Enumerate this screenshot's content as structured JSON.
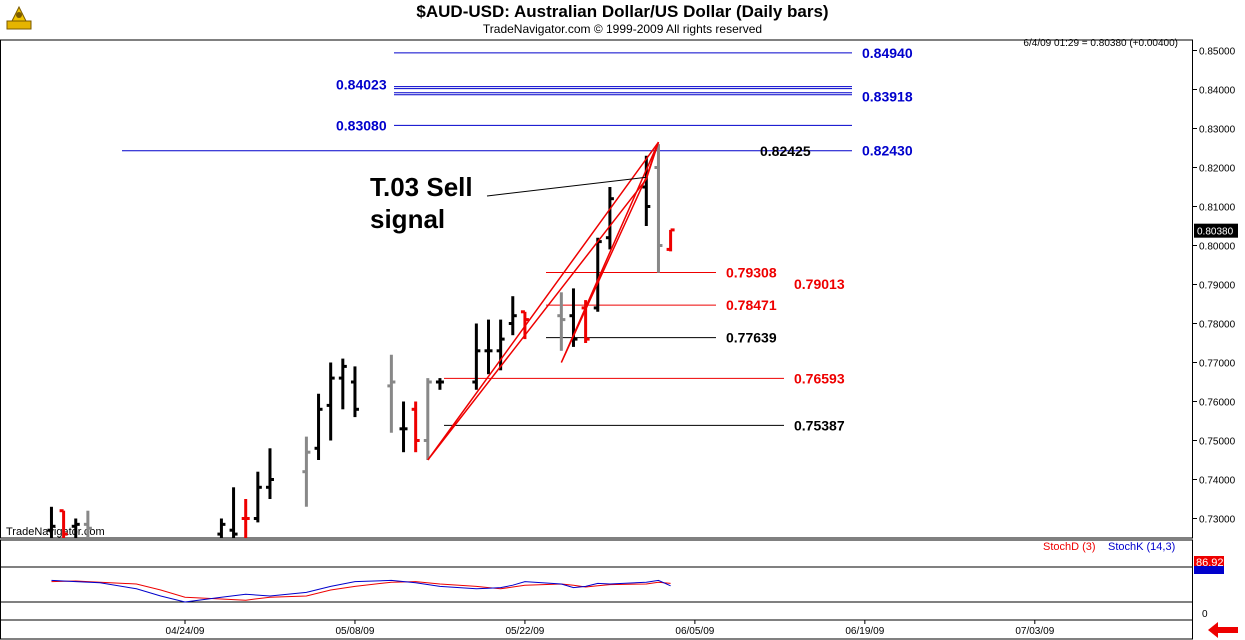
{
  "header": {
    "title": "$AUD-USD:  Australian Dollar/US Dollar  (Daily bars)",
    "subtitle": "TradeNavigator.com © 1999-2009 All rights reserved",
    "status": "6/4/09 01:29 = 0.80380 (+0.00400)",
    "watermark": "TradeNavigator.com",
    "last_price": "0.80380"
  },
  "chart_data": [
    {
      "type": "ohlc",
      "ylim": [
        0.725,
        0.8525
      ],
      "ytick_labels": [
        "0.73000",
        "0.74000",
        "0.75000",
        "0.76000",
        "0.77000",
        "0.78000",
        "0.79000",
        "0.80000",
        "0.81000",
        "0.82000",
        "0.83000",
        "0.84000",
        "0.85000"
      ],
      "xtick_labels": [
        "04/24/09",
        "05/08/09",
        "05/22/09",
        "06/05/09",
        "06/19/09",
        "07/03/09"
      ],
      "colors": {
        "up": "#000000",
        "down": "#ee0000",
        "neutral": "#888888"
      },
      "bars": [
        {
          "date": "04/13/09",
          "o": 0.727,
          "h": 0.733,
          "l": 0.725,
          "c": 0.728,
          "color": "up"
        },
        {
          "date": "04/14/09",
          "o": 0.732,
          "h": 0.732,
          "l": 0.725,
          "c": 0.726,
          "color": "down"
        },
        {
          "date": "04/15/09",
          "o": 0.728,
          "h": 0.73,
          "l": 0.725,
          "c": 0.7285,
          "color": "up"
        },
        {
          "date": "04/16/09",
          "o": 0.7285,
          "h": 0.732,
          "l": 0.725,
          "c": 0.7275,
          "color": "neutral"
        },
        {
          "date": "04/27/09",
          "o": 0.726,
          "h": 0.73,
          "l": 0.725,
          "c": 0.7285,
          "color": "up"
        },
        {
          "date": "04/28/09",
          "o": 0.727,
          "h": 0.738,
          "l": 0.725,
          "c": 0.726,
          "color": "up"
        },
        {
          "date": "04/29/09",
          "o": 0.73,
          "h": 0.735,
          "l": 0.725,
          "c": 0.73,
          "color": "down"
        },
        {
          "date": "04/30/09",
          "o": 0.73,
          "h": 0.742,
          "l": 0.729,
          "c": 0.738,
          "color": "up"
        },
        {
          "date": "05/01/09",
          "o": 0.738,
          "h": 0.748,
          "l": 0.735,
          "c": 0.74,
          "color": "up"
        },
        {
          "date": "05/04/09",
          "o": 0.742,
          "h": 0.751,
          "l": 0.733,
          "c": 0.747,
          "color": "neutral"
        },
        {
          "date": "05/05/09",
          "o": 0.748,
          "h": 0.762,
          "l": 0.745,
          "c": 0.758,
          "color": "up"
        },
        {
          "date": "05/06/09",
          "o": 0.759,
          "h": 0.77,
          "l": 0.75,
          "c": 0.766,
          "color": "up"
        },
        {
          "date": "05/07/09",
          "o": 0.766,
          "h": 0.771,
          "l": 0.758,
          "c": 0.769,
          "color": "up"
        },
        {
          "date": "05/08/09",
          "o": 0.765,
          "h": 0.769,
          "l": 0.756,
          "c": 0.758,
          "color": "up"
        },
        {
          "date": "05/11/09",
          "o": 0.764,
          "h": 0.772,
          "l": 0.752,
          "c": 0.765,
          "color": "neutral"
        },
        {
          "date": "05/12/09",
          "o": 0.753,
          "h": 0.76,
          "l": 0.747,
          "c": 0.753,
          "color": "up"
        },
        {
          "date": "05/13/09",
          "o": 0.758,
          "h": 0.76,
          "l": 0.747,
          "c": 0.75,
          "color": "down"
        },
        {
          "date": "05/14/09",
          "o": 0.75,
          "h": 0.766,
          "l": 0.745,
          "c": 0.765,
          "color": "neutral"
        },
        {
          "date": "05/15/09",
          "o": 0.765,
          "h": 0.766,
          "l": 0.763,
          "c": 0.765,
          "color": "up"
        },
        {
          "date": "05/18/09",
          "o": 0.765,
          "h": 0.78,
          "l": 0.763,
          "c": 0.773,
          "color": "up"
        },
        {
          "date": "05/19/09",
          "o": 0.773,
          "h": 0.781,
          "l": 0.767,
          "c": 0.773,
          "color": "up"
        },
        {
          "date": "05/20/09",
          "o": 0.773,
          "h": 0.781,
          "l": 0.768,
          "c": 0.776,
          "color": "up"
        },
        {
          "date": "05/21/09",
          "o": 0.78,
          "h": 0.787,
          "l": 0.777,
          "c": 0.782,
          "color": "up"
        },
        {
          "date": "05/22/09",
          "o": 0.783,
          "h": 0.783,
          "l": 0.776,
          "c": 0.781,
          "color": "down"
        },
        {
          "date": "05/25/09",
          "o": 0.782,
          "h": 0.788,
          "l": 0.773,
          "c": 0.781,
          "color": "neutral"
        },
        {
          "date": "05/26/09",
          "o": 0.782,
          "h": 0.789,
          "l": 0.774,
          "c": 0.776,
          "color": "up"
        },
        {
          "date": "05/27/09",
          "o": 0.784,
          "h": 0.786,
          "l": 0.775,
          "c": 0.776,
          "color": "down"
        },
        {
          "date": "05/28/09",
          "o": 0.784,
          "h": 0.802,
          "l": 0.783,
          "c": 0.801,
          "color": "up"
        },
        {
          "date": "05/29/09",
          "o": 0.802,
          "h": 0.815,
          "l": 0.799,
          "c": 0.812,
          "color": "up"
        },
        {
          "date": "06/01/09",
          "o": 0.815,
          "h": 0.823,
          "l": 0.805,
          "c": 0.81,
          "color": "up"
        },
        {
          "date": "06/02/09",
          "o": 0.82,
          "h": 0.826,
          "l": 0.793,
          "c": 0.8,
          "color": "neutral"
        },
        {
          "date": "06/03/09",
          "o": 0.799,
          "h": 0.804,
          "l": 0.7985,
          "c": 0.804,
          "color": "down"
        }
      ],
      "levels": [
        {
          "value": 0.8494,
          "label": "0.84940",
          "color": "#0000cc",
          "side": "right"
        },
        {
          "value": 0.84023,
          "label": "0.84023",
          "color": "#0000cc",
          "side": "left"
        },
        {
          "value": 0.83918,
          "label": "0.83918",
          "color": "#0000cc",
          "side": "right"
        },
        {
          "value": 0.8308,
          "label": "0.83080",
          "color": "#0000cc",
          "side": "left"
        },
        {
          "value": 0.8243,
          "label": "0.82430",
          "color": "#0000cc",
          "side": "right"
        },
        {
          "value": 0.82425,
          "label": "0.82425",
          "color": "#000000",
          "side": "mid"
        },
        {
          "value": 0.79308,
          "label": "0.79308",
          "color": "#ee0000",
          "side": "mid"
        },
        {
          "value": 0.79013,
          "label": "0.79013",
          "color": "#ee0000",
          "side": "none"
        },
        {
          "value": 0.78471,
          "label": "0.78471",
          "color": "#ee0000",
          "side": "mid"
        },
        {
          "value": 0.77639,
          "label": "0.77639",
          "color": "#000000",
          "side": "mid"
        },
        {
          "value": 0.76593,
          "label": "0.76593",
          "color": "#ee0000",
          "side": "right"
        },
        {
          "value": 0.75387,
          "label": "0.75387",
          "color": "#000000",
          "side": "right"
        }
      ],
      "annotation": "T.03 Sell\nsignal",
      "triangles": [
        {
          "points": [
            [
              "05/14/09",
              0.745
            ],
            [
              "06/02/09",
              0.8265
            ],
            [
              "06/01/09",
              0.817
            ]
          ]
        },
        {
          "points": [
            [
              "05/25/09",
              0.77
            ],
            [
              "06/02/09",
              0.8265
            ],
            [
              "06/01/09",
              0.8175
            ]
          ]
        }
      ]
    },
    {
      "type": "line",
      "ylim": [
        0,
        100
      ],
      "ytick_labels": [
        "0"
      ],
      "current_value": "86.92",
      "series": [
        {
          "name": "StochD (3)",
          "color": "#ee0000",
          "values": [
            84,
            85,
            83,
            80,
            70,
            58,
            55,
            53,
            58,
            60,
            70,
            76,
            83,
            84,
            80,
            76,
            74,
            72,
            75,
            78,
            80,
            78,
            75,
            77,
            79,
            80,
            83,
            81
          ]
        },
        {
          "name": "StochK (14,3)",
          "color": "#0000cc",
          "values": [
            86,
            84,
            82,
            72,
            60,
            50,
            58,
            63,
            60,
            66,
            76,
            84,
            86,
            82,
            76,
            72,
            73,
            74,
            78,
            84,
            80,
            74,
            76,
            81,
            80,
            83,
            86,
            77
          ]
        }
      ]
    }
  ]
}
